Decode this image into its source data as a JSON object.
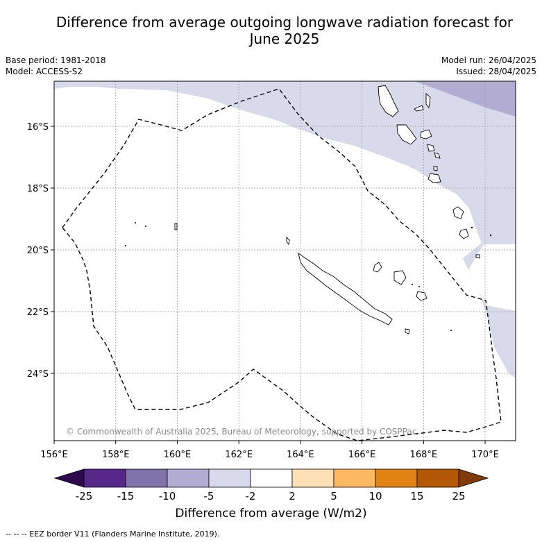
{
  "title_line1": "Difference from average outgoing longwave radiation forecast for",
  "title_line2": "June 2025",
  "base_period": "Base period: 1981-2018",
  "model": "Model: ACCESS-S2",
  "model_run": "Model run: 26/04/2025",
  "issued": "Issued: 28/04/2025",
  "credit": "© Commonwealth of Australia 2025, Bureau of Meteorology, supported by COSPPac",
  "lon_ticks": [
    "156°E",
    "158°E",
    "160°E",
    "162°E",
    "164°E",
    "166°E",
    "168°E",
    "170°E"
  ],
  "lat_ticks": [
    "16°S",
    "18°S",
    "20°S",
    "22°S",
    "24°S"
  ],
  "colorbar": {
    "labels": [
      "-25",
      "-15",
      "-10",
      "-5",
      "-2",
      "2",
      "5",
      "10",
      "15",
      "25"
    ],
    "colors": [
      "#2d0a4e",
      "#542788",
      "#8073ac",
      "#b2abd2",
      "#d8daeb",
      "#ffffff",
      "#fee0b6",
      "#fdb863",
      "#e08214",
      "#b35806",
      "#7f3b08"
    ],
    "title": "Difference from average (W/m2)"
  },
  "legend_footer": "--  --  -- EEZ border V11 (Flanders Marine Institute, 2019)."
}
